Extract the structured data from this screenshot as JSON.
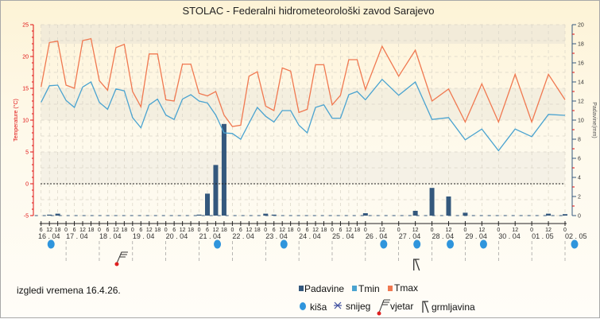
{
  "title": "STOLAC - Federalni hidrometeorološki zavod Sarajevo",
  "note": "izgledi vremena 16.4.26.",
  "colors": {
    "tmax": "#f07850",
    "tmin": "#4aa3d0",
    "precip": "#34587d",
    "left_axis": "#e01010",
    "right_axis": "#34587d",
    "rain": "#2f95dc"
  },
  "chart_data": {
    "type": "line+bar",
    "title": "STOLAC - Federalni hidrometeorološki zavod Sarajevo",
    "ylabel_left": "Temperature (°C)",
    "ylabel_right": "Padavine(mm)",
    "ylim_left": [
      -5,
      25
    ],
    "yticks_left": [
      -5,
      0,
      5,
      10,
      15,
      20,
      25
    ],
    "ylim_right": [
      0,
      20
    ],
    "yticks_right": [
      0,
      2,
      4,
      6,
      8,
      10,
      12,
      14,
      16,
      18,
      20
    ],
    "grid": true,
    "days": [
      "16 . 04",
      "17 . 04",
      "18 . 04",
      "19 . 04",
      "20 . 04",
      "21 . 04",
      "22 . 04",
      "23 . 04",
      "24 . 04",
      "25 . 04",
      "26 . 04",
      "27 . 04",
      "28 . 04",
      "29 . 04",
      "30 . 04",
      "01 . 05",
      "02 . 05"
    ],
    "times": [
      [
        0,
        6
      ],
      [
        0,
        12
      ],
      [
        0,
        18
      ],
      [
        1,
        0
      ],
      [
        1,
        6
      ],
      [
        1,
        12
      ],
      [
        1,
        18
      ],
      [
        2,
        0
      ],
      [
        2,
        6
      ],
      [
        2,
        12
      ],
      [
        2,
        18
      ],
      [
        3,
        0
      ],
      [
        3,
        6
      ],
      [
        3,
        12
      ],
      [
        3,
        18
      ],
      [
        4,
        0
      ],
      [
        4,
        6
      ],
      [
        4,
        12
      ],
      [
        4,
        18
      ],
      [
        5,
        0
      ],
      [
        5,
        6
      ],
      [
        5,
        12
      ],
      [
        5,
        18
      ],
      [
        6,
        0
      ],
      [
        6,
        6
      ],
      [
        6,
        12
      ],
      [
        6,
        18
      ],
      [
        7,
        0
      ],
      [
        7,
        6
      ],
      [
        7,
        12
      ],
      [
        7,
        18
      ],
      [
        8,
        0
      ],
      [
        8,
        6
      ],
      [
        8,
        12
      ],
      [
        8,
        18
      ],
      [
        9,
        0
      ],
      [
        9,
        6
      ],
      [
        9,
        12
      ],
      [
        9,
        18
      ],
      [
        10,
        0
      ],
      [
        10,
        12
      ],
      [
        11,
        0
      ],
      [
        11,
        12
      ],
      [
        12,
        0
      ],
      [
        12,
        12
      ],
      [
        13,
        0
      ],
      [
        13,
        12
      ],
      [
        14,
        0
      ],
      [
        14,
        12
      ],
      [
        15,
        0
      ],
      [
        15,
        12
      ],
      [
        16,
        0
      ]
    ],
    "series": [
      {
        "name": "Tmax",
        "type": "line",
        "values": [
          15.2,
          22.2,
          22.4,
          15.5,
          15.0,
          22.5,
          22.8,
          16.2,
          14.7,
          21.4,
          21.9,
          14.5,
          12.1,
          20.4,
          20.4,
          13.2,
          13.0,
          18.8,
          18.8,
          14.2,
          13.8,
          14.5,
          10.8,
          9.0,
          9.2,
          16.9,
          17.6,
          12.2,
          11.5,
          18.2,
          17.7,
          11.2,
          11.7,
          18.7,
          18.7,
          12.4,
          13.9,
          19.5,
          19.5,
          14.8,
          21.6,
          16.9,
          21.0,
          13.0,
          14.9,
          9.7,
          15.7,
          9.7,
          17.2,
          9.7,
          17.2,
          13.2
        ]
      },
      {
        "name": "Tmin",
        "type": "line",
        "values": [
          12.8,
          15.4,
          15.5,
          13.1,
          12.0,
          15.2,
          16.0,
          12.8,
          11.7,
          14.9,
          14.6,
          10.4,
          8.8,
          12.4,
          13.3,
          10.8,
          10.1,
          13.3,
          14.0,
          13.0,
          12.7,
          10.8,
          8.0,
          7.9,
          7.0,
          9.5,
          12.0,
          10.6,
          9.7,
          11.5,
          11.5,
          9.2,
          8.0,
          12.0,
          12.4,
          10.3,
          10.3,
          14.0,
          14.5,
          13.2,
          16.4,
          13.9,
          16.0,
          10.1,
          10.4,
          6.9,
          8.6,
          5.2,
          8.6,
          7.4,
          10.9,
          10.75
        ]
      },
      {
        "name": "Padavine",
        "type": "bar",
        "axis": "right",
        "values": [
          0,
          0.1,
          0.2,
          0,
          0,
          0,
          0,
          0,
          0,
          0,
          0,
          0,
          0,
          0,
          0,
          0,
          0,
          0,
          0,
          0.1,
          2.3,
          5.3,
          9.6,
          0,
          0,
          0,
          0,
          0.2,
          0.1,
          0,
          0,
          0,
          0,
          0,
          0,
          0,
          0,
          0,
          0,
          0.25,
          0,
          0,
          0.5,
          2.9,
          2.0,
          0.3,
          0,
          0,
          0,
          0,
          0.2,
          0.15
        ]
      }
    ],
    "legend": [
      "Padavine",
      "Tmin",
      "Tmax"
    ],
    "legend_placement": "bottom-right",
    "symbols": [
      {
        "type": "rain",
        "day": 0
      },
      {
        "type": "wind",
        "day": 2
      },
      {
        "type": "rain",
        "day": 5
      },
      {
        "type": "rain",
        "day": 7
      },
      {
        "type": "rain",
        "day": 10
      },
      {
        "type": "rain",
        "day": 11
      },
      {
        "type": "thunder",
        "day": 11
      },
      {
        "type": "rain",
        "day": 12
      },
      {
        "type": "rain",
        "day": 13
      },
      {
        "type": "rain",
        "day": 16
      }
    ],
    "symbol_legend": [
      "kiša",
      "snijeg",
      "vjetar",
      "grmljavina"
    ]
  }
}
